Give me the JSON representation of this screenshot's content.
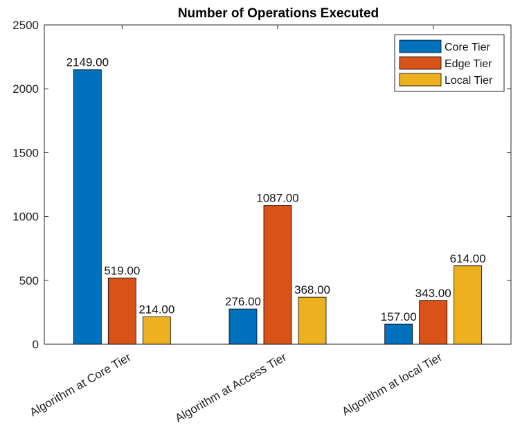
{
  "chart_data": {
    "type": "bar",
    "title": "Number of Operations Executed",
    "xlabel": "",
    "ylabel": "",
    "ylim": [
      0,
      2500
    ],
    "yticks": [
      0,
      500,
      1000,
      1500,
      2000,
      2500
    ],
    "categories": [
      "Algorithm at Core Tier",
      "Algorithm at Access Tier",
      "Algorithm at local Tier"
    ],
    "series": [
      {
        "name": "Core Tier",
        "color": "#0072bd",
        "values": [
          2149,
          276,
          157
        ],
        "labels": [
          "2149.00",
          "276.00",
          "157.00"
        ]
      },
      {
        "name": "Edge Tier",
        "color": "#d95319",
        "values": [
          519,
          1087,
          343
        ],
        "labels": [
          "519.00",
          "1087.00",
          "343.00"
        ]
      },
      {
        "name": "Local Tier",
        "color": "#edb120",
        "values": [
          214,
          368,
          614
        ],
        "labels": [
          "214.00",
          "368.00",
          "614.00"
        ]
      }
    ],
    "legend": "top-right",
    "grid": false
  }
}
